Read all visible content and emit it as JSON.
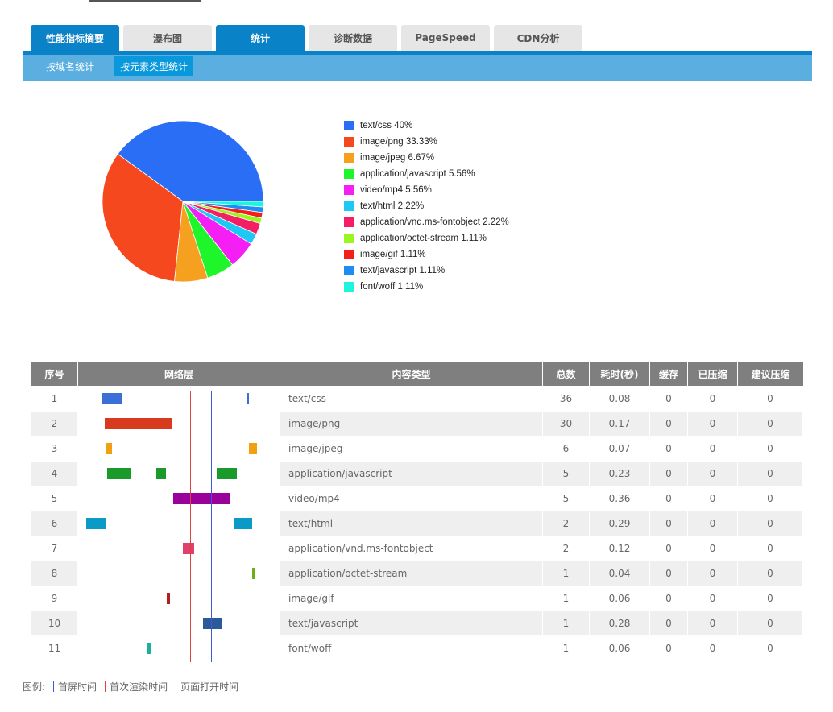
{
  "tabs": [
    {
      "label": "性能指标摘要",
      "active": true
    },
    {
      "label": "瀑布图",
      "active": false
    },
    {
      "label": "统计",
      "active": true
    },
    {
      "label": "诊断数据",
      "active": false
    },
    {
      "label": "PageSpeed",
      "active": false
    },
    {
      "label": "CDN分析",
      "active": false
    }
  ],
  "subnav": [
    {
      "label": "按域名统计",
      "active": false
    },
    {
      "label": "按元素类型统计",
      "active": true
    }
  ],
  "chart_data": {
    "type": "pie",
    "slices": [
      {
        "label": "text/css",
        "value": 40,
        "display": "text/css 40%",
        "color": "#2a6ef5"
      },
      {
        "label": "image/png",
        "value": 33.33,
        "display": "image/png 33.33%",
        "color": "#f5481e"
      },
      {
        "label": "image/jpeg",
        "value": 6.67,
        "display": "image/jpeg 6.67%",
        "color": "#f5a01e"
      },
      {
        "label": "application/javascript",
        "value": 5.56,
        "display": "application/javascript 5.56%",
        "color": "#1ef52a"
      },
      {
        "label": "video/mp4",
        "value": 5.56,
        "display": "video/mp4 5.56%",
        "color": "#f51ef5"
      },
      {
        "label": "text/html",
        "value": 2.22,
        "display": "text/html 2.22%",
        "color": "#1ec8f5"
      },
      {
        "label": "application/vnd.ms-fontobject",
        "value": 2.22,
        "display": "application/vnd.ms-fontobject 2.22%",
        "color": "#f51e64"
      },
      {
        "label": "application/octet-stream",
        "value": 1.11,
        "display": "application/octet-stream 1.11%",
        "color": "#9bf51e"
      },
      {
        "label": "image/gif",
        "value": 1.11,
        "display": "image/gif 1.11%",
        "color": "#f51e1e"
      },
      {
        "label": "text/javascript",
        "value": 1.11,
        "display": "text/javascript 1.11%",
        "color": "#1e8cf5"
      },
      {
        "label": "font/woff",
        "value": 1.11,
        "display": "font/woff 1.11%",
        "color": "#1ef5dc"
      }
    ]
  },
  "table": {
    "headers": [
      "序号",
      "网络层",
      "内容类型",
      "总数",
      "耗时(秒)",
      "缓存",
      "已压缩",
      "建议压缩"
    ],
    "rows": [
      {
        "no": "1",
        "type": "text/css",
        "total": "36",
        "time": "0.08",
        "cache": "0",
        "compressed": "0",
        "suggest": "0"
      },
      {
        "no": "2",
        "type": "image/png",
        "total": "30",
        "time": "0.17",
        "cache": "0",
        "compressed": "0",
        "suggest": "0"
      },
      {
        "no": "3",
        "type": "image/jpeg",
        "total": "6",
        "time": "0.07",
        "cache": "0",
        "compressed": "0",
        "suggest": "0"
      },
      {
        "no": "4",
        "type": "application/javascript",
        "total": "5",
        "time": "0.23",
        "cache": "0",
        "compressed": "0",
        "suggest": "0"
      },
      {
        "no": "5",
        "type": "video/mp4",
        "total": "5",
        "time": "0.36",
        "cache": "0",
        "compressed": "0",
        "suggest": "0"
      },
      {
        "no": "6",
        "type": "text/html",
        "total": "2",
        "time": "0.29",
        "cache": "0",
        "compressed": "0",
        "suggest": "0"
      },
      {
        "no": "7",
        "type": "application/vnd.ms-fontobject",
        "total": "2",
        "time": "0.12",
        "cache": "0",
        "compressed": "0",
        "suggest": "0"
      },
      {
        "no": "8",
        "type": "application/octet-stream",
        "total": "1",
        "time": "0.04",
        "cache": "0",
        "compressed": "0",
        "suggest": "0"
      },
      {
        "no": "9",
        "type": "image/gif",
        "total": "1",
        "time": "0.06",
        "cache": "0",
        "compressed": "0",
        "suggest": "0"
      },
      {
        "no": "10",
        "type": "text/javascript",
        "total": "1",
        "time": "0.28",
        "cache": "0",
        "compressed": "0",
        "suggest": "0"
      },
      {
        "no": "11",
        "type": "font/woff",
        "total": "1",
        "time": "0.06",
        "cache": "0",
        "compressed": "0",
        "suggest": "0"
      }
    ]
  },
  "network_colors": [
    "#3a6fd8",
    "#d83a1e",
    "#f0a010",
    "#1a9a2a",
    "#9a009a",
    "#0a9ac8",
    "#e0406a",
    "#6ab01a",
    "#b02020",
    "#2a5a9a",
    "#1ab09a"
  ],
  "footer_legend": {
    "label": "图例:",
    "items": [
      {
        "label": "首屏时间",
        "color": "#3a5ad8"
      },
      {
        "label": "首次渲染时间",
        "color": "#e04040"
      },
      {
        "label": "页面打开时间",
        "color": "#2aa02a"
      }
    ]
  }
}
